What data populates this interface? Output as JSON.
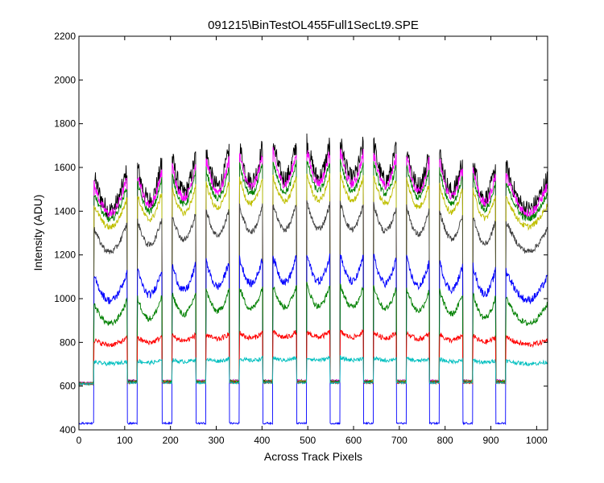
{
  "chart_data": {
    "type": "line",
    "title": "091215\\BinTestOL455Full1SecLt9.SPE",
    "xlabel": "Across Track Pixels",
    "ylabel": "Intensity (ADU)",
    "xlim": [
      0,
      1024
    ],
    "ylim": [
      400,
      2200
    ],
    "xticks": [
      0,
      100,
      200,
      300,
      400,
      500,
      600,
      700,
      800,
      900,
      1000
    ],
    "yticks": [
      400,
      600,
      800,
      1000,
      1200,
      1400,
      1600,
      1800,
      2000,
      2200
    ],
    "grid": false,
    "legend": "none",
    "num_points": 1024,
    "gap_centers": [
      117,
      193,
      267,
      340,
      413,
      487,
      560,
      633,
      705,
      777,
      850,
      922
    ],
    "gap_half_width": 11,
    "lead_edge": 33,
    "series": [
      {
        "color": "#000000",
        "baseline": 615,
        "plateau_edge": 1640,
        "plateau_center": 1470,
        "noise": 45,
        "gap_level": 625,
        "dome": 170
      },
      {
        "color": "#ff00ff",
        "baseline": 615,
        "plateau_edge": 1600,
        "plateau_center": 1450,
        "noise": 22,
        "gap_level": 625,
        "dome": 160
      },
      {
        "color": "#008000",
        "baseline": 612,
        "plateau_edge": 1560,
        "plateau_center": 1420,
        "noise": 15,
        "gap_level": 622,
        "dome": 150
      },
      {
        "color": "#bfbf00",
        "baseline": 612,
        "plateau_edge": 1500,
        "plateau_center": 1380,
        "noise": 14,
        "gap_level": 622,
        "dome": 140
      },
      {
        "color": "#404040",
        "baseline": 610,
        "plateau_edge": 1380,
        "plateau_center": 1260,
        "noise": 14,
        "gap_level": 620,
        "dome": 120
      },
      {
        "color": "#0000ff",
        "baseline": 430,
        "plateau_edge": 1150,
        "plateau_center": 1030,
        "noise": 18,
        "gap_level": 430,
        "dome": 100
      },
      {
        "color": "#008000",
        "baseline": 610,
        "plateau_edge": 1020,
        "plateau_center": 920,
        "noise": 14,
        "gap_level": 618,
        "dome": 90
      },
      {
        "color": "#ff0000",
        "baseline": 610,
        "plateau_edge": 830,
        "plateau_center": 805,
        "noise": 12,
        "gap_level": 615,
        "dome": 40
      },
      {
        "color": "#00bfbf",
        "baseline": 610,
        "plateau_edge": 720,
        "plateau_center": 710,
        "noise": 9,
        "gap_level": 615,
        "dome": 20
      }
    ]
  }
}
